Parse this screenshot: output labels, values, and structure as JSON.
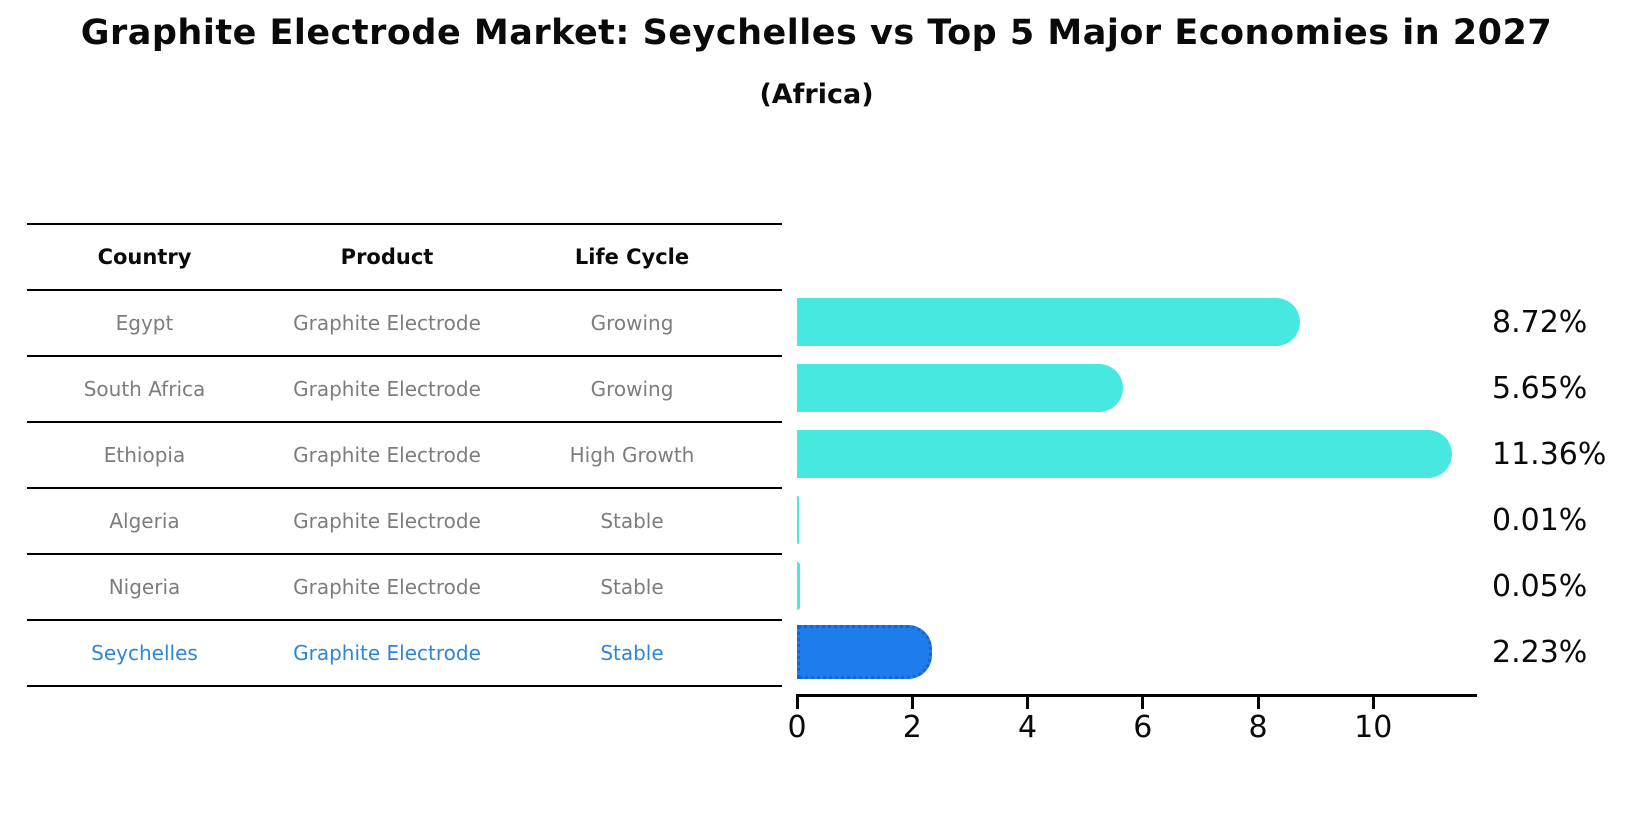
{
  "title": "Graphite Electrode Market: Seychelles vs Top 5 Major Economies in 2027",
  "subtitle": "(Africa)",
  "table": {
    "headers": {
      "country": "Country",
      "product": "Product",
      "life_cycle": "Life Cycle"
    },
    "rows": [
      {
        "country": "Egypt",
        "product": "Graphite Electrode",
        "life_cycle": "Growing"
      },
      {
        "country": "South Africa",
        "product": "Graphite Electrode",
        "life_cycle": "Growing"
      },
      {
        "country": "Ethiopia",
        "product": "Graphite Electrode",
        "life_cycle": "High Growth"
      },
      {
        "country": "Algeria",
        "product": "Graphite Electrode",
        "life_cycle": "Stable"
      },
      {
        "country": "Nigeria",
        "product": "Graphite Electrode",
        "life_cycle": "Stable"
      },
      {
        "country": "Seychelles",
        "product": "Graphite Electrode",
        "life_cycle": "Stable"
      }
    ],
    "highlight_row_index": 5
  },
  "chart_data": {
    "type": "bar",
    "orientation": "horizontal",
    "title": "Graphite Electrode Market: Seychelles vs Top 5 Major Economies in 2027 (Africa)",
    "categories": [
      "Egypt",
      "South Africa",
      "Ethiopia",
      "Algeria",
      "Nigeria",
      "Seychelles"
    ],
    "values": [
      8.72,
      5.65,
      11.36,
      0.01,
      0.05,
      2.23
    ],
    "value_labels": [
      "8.72%",
      "5.65%",
      "11.36%",
      "0.01%",
      "0.05%",
      "2.23%"
    ],
    "xlim": [
      0,
      11.8
    ],
    "xticks": [
      "0",
      "2",
      "4",
      "6",
      "8",
      "10"
    ],
    "xtick_values": [
      0,
      2,
      4,
      6,
      8,
      10
    ],
    "grid": false,
    "legend_position": "none",
    "bar_color": "#46e8e0",
    "highlight_bar_color": "#1f7ceb",
    "highlight_index": 5
  },
  "colors": {
    "background": "#ffffff",
    "text": "#0a0a0a",
    "muted_text": "#7d7d7d",
    "highlight_text": "#2e86d6",
    "bar": "#46e8e0",
    "highlight_bar": "#1f7ceb",
    "line": "#000000"
  }
}
